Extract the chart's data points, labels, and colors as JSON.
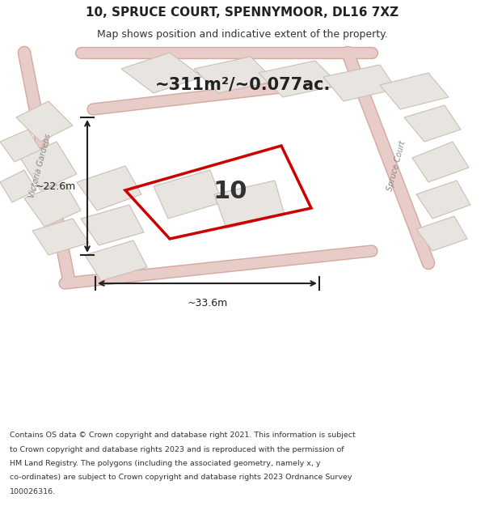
{
  "title": "10, SPRUCE COURT, SPENNYMOOR, DL16 7XZ",
  "subtitle": "Map shows position and indicative extent of the property.",
  "area_text": "~311m²/~0.077ac.",
  "width_label": "~33.6m",
  "height_label": "~22.6m",
  "number_label": "10",
  "map_bg": "#f0eeec",
  "highlight_color": "#cc0000",
  "building_fill": "#e8e4e0",
  "building_stroke": "#c8c0b8",
  "footer_lines": [
    "Contains OS data © Crown copyright and database right 2021. This information is subject",
    "to Crown copyright and database rights 2023 and is reproduced with the permission of",
    "HM Land Registry. The polygons (including the associated geometry, namely x, y",
    "co-ordinates) are subject to Crown copyright and database rights 2023 Ordnance Survey",
    "100026316."
  ]
}
